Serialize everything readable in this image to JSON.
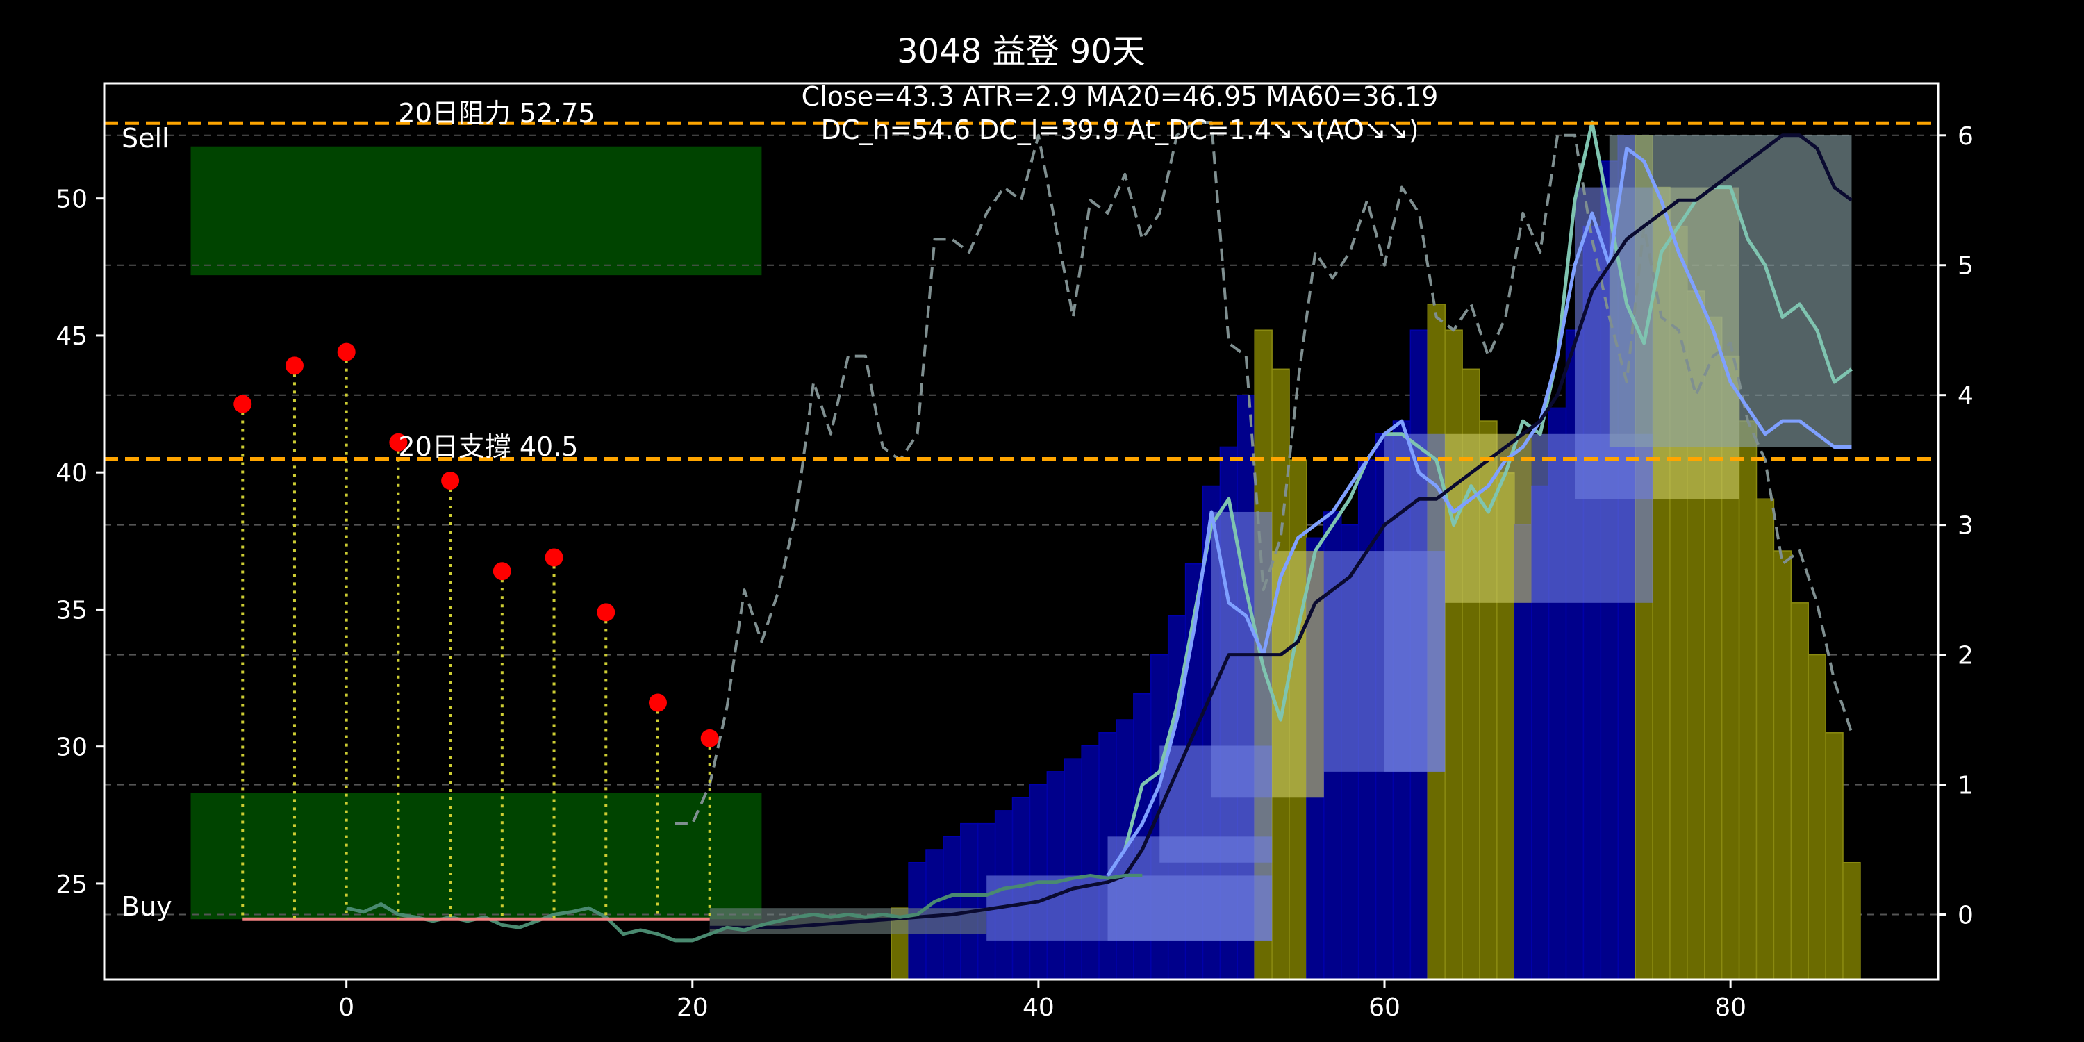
{
  "chart_data": {
    "type": "bar",
    "title": "3048 益登 90天",
    "info_line1": "Close=43.3 ATR=2.9 MA20=46.95 MA60=36.19",
    "info_line2": "DC_h=54.6 DC_l=39.9 At_DC=1.4↘↘(AO↘↘)",
    "sell_label": "Sell",
    "buy_label": "Buy",
    "resistance": {
      "label": "20日阻力 52.75",
      "value": 52.75
    },
    "support": {
      "label": "20日支撐 40.5",
      "value": 40.5
    },
    "x_ticks": [
      0,
      20,
      40,
      60,
      80
    ],
    "x_tick_labels": [
      "0",
      "20",
      "40",
      "60",
      "80"
    ],
    "y_ticks": [
      25,
      30,
      35,
      40,
      45,
      50
    ],
    "y_tick_labels": [
      "25",
      "30",
      "35",
      "40",
      "45",
      "50"
    ],
    "y2_ticks": [
      0,
      1,
      2,
      3,
      4,
      5,
      6
    ],
    "y2_tick_labels": [
      "0",
      "1",
      "2",
      "3",
      "4",
      "5",
      "6"
    ],
    "xlim": [
      -14,
      92
    ],
    "ylim": [
      21.5,
      54.2
    ],
    "y2lim": [
      -0.5,
      6.4
    ],
    "colors": {
      "zone": "#004400",
      "ref_line": "#ffa500",
      "stem": "#cccc33",
      "marker": "#ff0000",
      "dashed": "#7f8f90",
      "high_line": "#7fc4b0",
      "ma_line": "#7fa0ff",
      "mid_line": "#0a0a30",
      "blue_bar": "#00008b",
      "yellow_bar": "#6b6b00",
      "band_blue": "#6f7fe0",
      "band_yellow": "#cccc66",
      "band_gray": "#8aa3a8",
      "band_gray_lower": "#708080",
      "base_line": "#f08080",
      "low_line": "#4a8a70",
      "grid": "#555555"
    },
    "zones": [
      {
        "name": "sell-zone",
        "x": [
          -9,
          24
        ],
        "y": [
          47.2,
          51.9
        ]
      },
      {
        "name": "buy-zone",
        "x": [
          -9,
          24
        ],
        "y": [
          23.7,
          28.3
        ]
      }
    ],
    "pivot_points": {
      "x": [
        -6,
        -3,
        0,
        3,
        6,
        9,
        12,
        15,
        18,
        21
      ],
      "y": [
        42.5,
        43.9,
        44.4,
        41.1,
        39.7,
        36.4,
        36.9,
        34.9,
        31.6,
        30.3
      ]
    },
    "bars_x": [
      32,
      33,
      34,
      35,
      36,
      37,
      38,
      39,
      40,
      41,
      42,
      43,
      44,
      45,
      46,
      47,
      48,
      49,
      50,
      51,
      52,
      53,
      54,
      55,
      56,
      57,
      58,
      59,
      60,
      61,
      62,
      63,
      64,
      65,
      66,
      67,
      68,
      69,
      70,
      71,
      72,
      73,
      74,
      75,
      76,
      77,
      78,
      79,
      80,
      81,
      82,
      83,
      84,
      85,
      86,
      87
    ],
    "bars_value": [
      0.05,
      0.4,
      0.5,
      0.6,
      0.7,
      0.7,
      0.8,
      0.9,
      1.0,
      1.1,
      1.2,
      1.3,
      1.4,
      1.5,
      1.7,
      2.0,
      2.3,
      2.7,
      3.3,
      3.6,
      4.0,
      4.5,
      4.2,
      3.5,
      2.9,
      3.1,
      3.0,
      3.5,
      3.7,
      3.8,
      4.5,
      4.7,
      4.5,
      4.2,
      3.8,
      3.4,
      3.0,
      3.3,
      3.9,
      4.5,
      5.3,
      5.8,
      6.0,
      6.0,
      5.6,
      5.3,
      4.8,
      4.6,
      4.3,
      3.8,
      3.2,
      2.8,
      2.4,
      2.0,
      1.4,
      0.4
    ],
    "bars_color": [
      "yellow",
      "blue",
      "blue",
      "blue",
      "blue",
      "blue",
      "blue",
      "blue",
      "blue",
      "blue",
      "blue",
      "blue",
      "blue",
      "blue",
      "blue",
      "blue",
      "blue",
      "blue",
      "blue",
      "blue",
      "blue",
      "yellow",
      "yellow",
      "yellow",
      "blue",
      "blue",
      "blue",
      "blue",
      "blue",
      "blue",
      "blue",
      "yellow",
      "yellow",
      "yellow",
      "yellow",
      "yellow",
      "blue",
      "blue",
      "blue",
      "blue",
      "blue",
      "blue",
      "blue",
      "yellow",
      "yellow",
      "yellow",
      "yellow",
      "yellow",
      "yellow",
      "yellow",
      "yellow",
      "yellow",
      "yellow",
      "yellow",
      "yellow",
      "yellow"
    ],
    "bands": [
      {
        "color": "gray_lower",
        "x0": 21,
        "x1": 37,
        "top": 0.05,
        "bottom": -0.15
      },
      {
        "color": "blue",
        "x0": 37,
        "x1": 53.5,
        "top": 0.3,
        "bottom": -0.2
      },
      {
        "color": "blue",
        "x0": 44,
        "x1": 53.5,
        "top": 0.6,
        "bottom": -0.2
      },
      {
        "color": "blue",
        "x0": 47,
        "x1": 53.5,
        "top": 1.3,
        "bottom": 0.4
      },
      {
        "color": "blue",
        "x0": 50,
        "x1": 53.5,
        "top": 3.1,
        "bottom": 0.9
      },
      {
        "color": "yellow",
        "x0": 53.5,
        "x1": 56.5,
        "top": 2.8,
        "bottom": 0.9
      },
      {
        "color": "blue",
        "x0": 56.5,
        "x1": 63.5,
        "top": 2.8,
        "bottom": 1.1
      },
      {
        "color": "blue",
        "x0": 60,
        "x1": 63.5,
        "top": 3.7,
        "bottom": 1.1
      },
      {
        "color": "yellow",
        "x0": 63.5,
        "x1": 68.5,
        "top": 3.7,
        "bottom": 2.4
      },
      {
        "color": "blue",
        "x0": 68.5,
        "x1": 75.5,
        "top": 3.7,
        "bottom": 2.4
      },
      {
        "color": "blue",
        "x0": 71,
        "x1": 75.5,
        "top": 5.6,
        "bottom": 3.2
      },
      {
        "color": "yellow",
        "x0": 75.5,
        "x1": 80.5,
        "top": 5.6,
        "bottom": 3.2
      },
      {
        "color": "gray",
        "x0": 73,
        "x1": 87,
        "top": 6.0,
        "bottom": 3.6
      }
    ],
    "lines": [
      {
        "name": "dashed-line",
        "style": "dashed",
        "color": "dashed",
        "x": [
          19,
          20,
          21,
          22,
          23,
          24,
          25,
          26,
          27,
          28,
          29,
          30,
          31,
          32,
          33,
          34,
          35,
          36,
          37,
          38,
          39,
          40,
          41,
          42,
          43,
          44,
          45,
          46,
          47,
          48,
          49,
          50,
          51,
          52,
          53,
          54,
          55,
          56,
          57,
          58,
          59,
          60,
          61,
          62,
          63,
          64,
          65,
          66,
          67,
          68,
          69,
          70,
          71,
          72,
          73,
          74,
          75,
          76,
          77,
          78,
          79,
          80,
          81,
          82,
          83,
          84,
          85,
          86,
          87
        ],
        "y": [
          0.7,
          0.7,
          1.0,
          1.6,
          2.5,
          2.1,
          2.5,
          3.1,
          4.1,
          3.7,
          4.3,
          4.3,
          3.6,
          3.5,
          3.7,
          5.2,
          5.2,
          5.1,
          5.4,
          5.6,
          5.5,
          6.0,
          5.3,
          4.6,
          5.5,
          5.4,
          5.7,
          5.2,
          5.4,
          6.0,
          6.1,
          6.1,
          4.4,
          4.3,
          2.5,
          2.9,
          4.1,
          5.1,
          4.9,
          5.1,
          5.5,
          5.0,
          5.6,
          5.4,
          4.6,
          4.5,
          4.7,
          4.3,
          4.6,
          5.4,
          5.1,
          6.0,
          6.0,
          5.2,
          4.6,
          4.1,
          5.3,
          4.6,
          4.5,
          4.0,
          4.3,
          4.4,
          3.8,
          3.5,
          2.7,
          2.8,
          2.4,
          1.8,
          1.4
        ]
      },
      {
        "name": "high-line",
        "style": "solid",
        "color": "high_line",
        "x": [
          45,
          46,
          47,
          48,
          49,
          50,
          51,
          52,
          53,
          54,
          55,
          56,
          57,
          58,
          59,
          60,
          61,
          62,
          63,
          64,
          65,
          66,
          67,
          68,
          69,
          70,
          71,
          72,
          73,
          74,
          75,
          76,
          77,
          78,
          79,
          80,
          81,
          82,
          83,
          84,
          85,
          86,
          87
        ],
        "y": [
          0.5,
          1.0,
          1.1,
          1.6,
          2.3,
          3.0,
          3.2,
          2.5,
          1.9,
          1.5,
          2.2,
          2.8,
          3.0,
          3.2,
          3.5,
          3.7,
          3.7,
          3.6,
          3.5,
          3.0,
          3.3,
          3.1,
          3.4,
          3.8,
          3.7,
          4.3,
          5.5,
          6.1,
          5.4,
          4.7,
          4.4,
          5.1,
          5.3,
          5.5,
          5.6,
          5.6,
          5.2,
          5.0,
          4.6,
          4.7,
          4.5,
          4.1,
          4.2
        ]
      },
      {
        "name": "ma-line",
        "style": "solid",
        "color": "ma_line",
        "x": [
          44,
          45,
          46,
          47,
          48,
          49,
          50,
          51,
          52,
          53,
          54,
          55,
          56,
          57,
          58,
          59,
          60,
          61,
          62,
          63,
          64,
          65,
          66,
          67,
          68,
          69,
          70,
          71,
          72,
          73,
          74,
          75,
          76,
          77,
          78,
          79,
          80,
          81,
          82,
          83,
          84,
          85,
          86,
          87
        ],
        "y": [
          0.3,
          0.5,
          0.7,
          1.0,
          1.5,
          2.2,
          3.1,
          2.4,
          2.3,
          2.0,
          2.6,
          2.9,
          3.0,
          3.1,
          3.3,
          3.5,
          3.7,
          3.8,
          3.4,
          3.3,
          3.1,
          3.2,
          3.3,
          3.5,
          3.6,
          3.8,
          4.3,
          5.0,
          5.4,
          5.0,
          5.9,
          5.8,
          5.5,
          5.1,
          4.8,
          4.5,
          4.1,
          3.9,
          3.7,
          3.8,
          3.8,
          3.7,
          3.6,
          3.6
        ]
      },
      {
        "name": "mid-line",
        "style": "solid",
        "color": "mid_line",
        "x": [
          21,
          25,
          30,
          35,
          40,
          42,
          44,
          45,
          46,
          47,
          48,
          49,
          50,
          51,
          52,
          53,
          54,
          55,
          56,
          57,
          58,
          59,
          60,
          61,
          62,
          63,
          64,
          65,
          66,
          67,
          68,
          69,
          70,
          71,
          72,
          73,
          74,
          75,
          76,
          77,
          78,
          79,
          80,
          81,
          82,
          83,
          84,
          85,
          86,
          87
        ],
        "y": [
          -0.1,
          -0.1,
          -0.05,
          0.0,
          0.1,
          0.2,
          0.25,
          0.3,
          0.5,
          0.8,
          1.1,
          1.4,
          1.7,
          2.0,
          2.0,
          2.0,
          2.0,
          2.1,
          2.4,
          2.5,
          2.6,
          2.8,
          3.0,
          3.1,
          3.2,
          3.2,
          3.3,
          3.4,
          3.5,
          3.6,
          3.7,
          3.8,
          4.0,
          4.4,
          4.8,
          5.0,
          5.2,
          5.3,
          5.4,
          5.5,
          5.5,
          5.6,
          5.7,
          5.8,
          5.9,
          6.0,
          6.0,
          5.9,
          5.6,
          5.5
        ]
      },
      {
        "name": "low-line",
        "style": "solid",
        "color": "low_line",
        "x": [
          0,
          1,
          2,
          3,
          4,
          5,
          6,
          7,
          8,
          9,
          10,
          11,
          12,
          13,
          14,
          15,
          16,
          17,
          18,
          19,
          20,
          21,
          22,
          23,
          24,
          25,
          26,
          27,
          28,
          29,
          30,
          31,
          32,
          33,
          34,
          35,
          36,
          37,
          38,
          39,
          40,
          41,
          42,
          43,
          44,
          45,
          46
        ],
        "y": [
          0.05,
          0.02,
          0.08,
          0.0,
          -0.02,
          -0.05,
          -0.02,
          -0.05,
          -0.02,
          -0.08,
          -0.1,
          -0.05,
          0.0,
          0.02,
          0.05,
          -0.02,
          -0.15,
          -0.12,
          -0.15,
          -0.2,
          -0.2,
          -0.15,
          -0.1,
          -0.12,
          -0.08,
          -0.05,
          -0.02,
          0.0,
          -0.02,
          0.0,
          -0.02,
          0.0,
          -0.02,
          0.0,
          0.1,
          0.15,
          0.15,
          0.15,
          0.2,
          0.22,
          0.25,
          0.25,
          0.28,
          0.3,
          0.28,
          0.3,
          0.3
        ]
      }
    ],
    "base_line": {
      "x": [
        -6,
        21
      ],
      "y": 23.7
    }
  }
}
